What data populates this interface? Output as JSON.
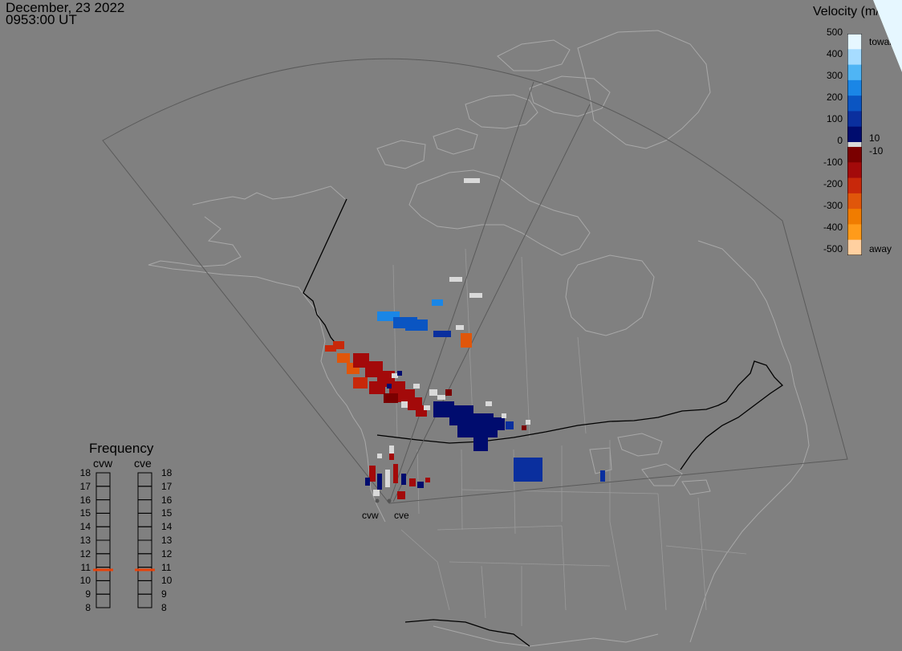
{
  "header": {
    "date": "December, 23 2022",
    "time": "0953:00 UT"
  },
  "colorbar": {
    "title": "Velocity (m/s)",
    "ticks": [
      "500",
      "400",
      "300",
      "200",
      "100",
      "0",
      "-100",
      "-200",
      "-300",
      "-400",
      "-500"
    ],
    "extra_labels": {
      "plus10": "10",
      "minus10": "-10"
    },
    "toward_label": "toward",
    "away_label": "away",
    "colors_toward": [
      "#e6f7ff",
      "#a6dcff",
      "#4fb5f5",
      "#1a86e6",
      "#0a55c2",
      "#0a2f9e",
      "#000c6e"
    ],
    "colors_away": [
      "#7a0000",
      "#a30a0a",
      "#c8280a",
      "#e0560a",
      "#f07c00",
      "#ff9b1a",
      "#ffd0a0"
    ],
    "gray_band": "#d9d9d9"
  },
  "frequency": {
    "title": "Frequency",
    "radars": [
      "cvw",
      "cve"
    ],
    "scale": [
      "18",
      "17",
      "16",
      "15",
      "14",
      "13",
      "12",
      "11",
      "10",
      "9",
      "8"
    ],
    "current_mhz": {
      "cvw": 10.8,
      "cve": 10.8
    },
    "marker_color": "#e8420a"
  },
  "radar_sites": [
    {
      "id": "cvw",
      "label": "cvw"
    },
    {
      "id": "cve",
      "label": "cve"
    }
  ]
}
